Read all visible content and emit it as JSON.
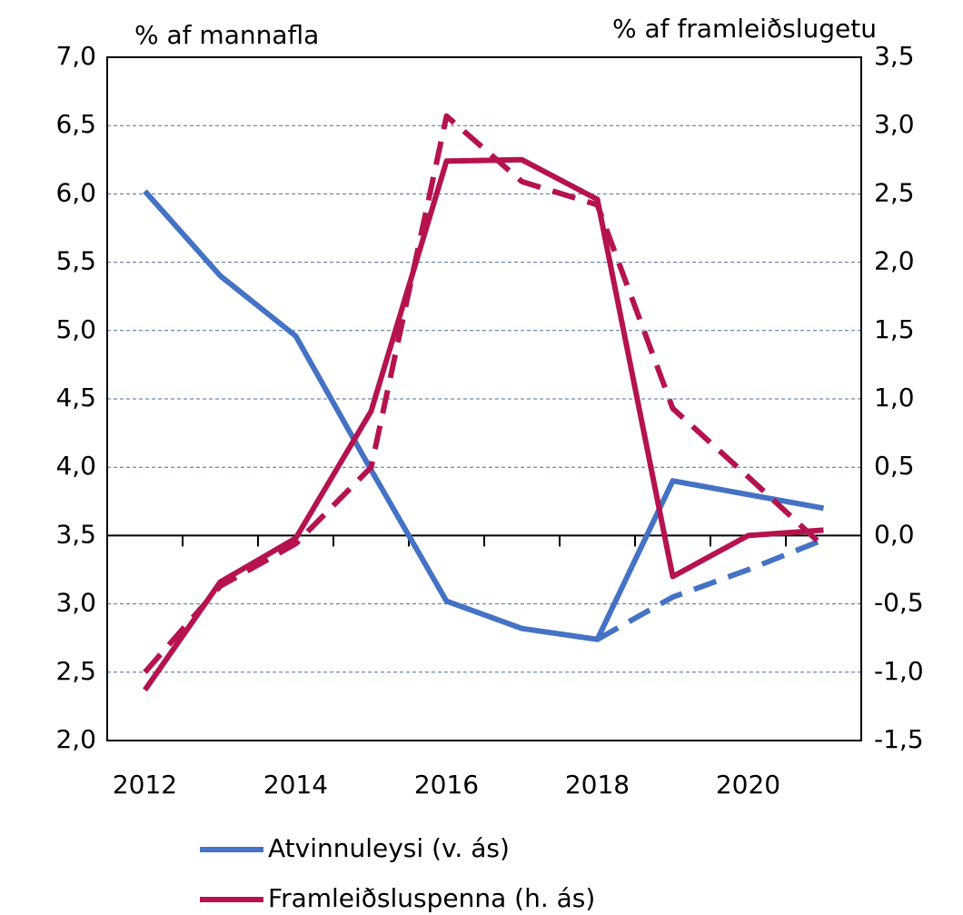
{
  "chart_data": {
    "type": "line",
    "y_axis_label": "% af mannafla",
    "y2_axis_label": "% af framleiðslugetu",
    "categories": [
      "2012",
      null,
      "2014",
      null,
      "2016",
      null,
      "2018",
      null,
      "2020",
      null
    ],
    "series": [
      {
        "name": "Atvinnuleysi (v. ás)",
        "color": "#4472c4",
        "axis": "y",
        "dashed": false,
        "values": [
          6.02,
          5.4,
          4.96,
          3.98,
          3.02,
          2.82,
          2.74,
          3.9,
          3.8,
          3.7
        ]
      },
      {
        "color": "#4472c4",
        "axis": "y",
        "dashed": true,
        "values": [
          null,
          null,
          null,
          null,
          null,
          null,
          2.74,
          3.05,
          3.25,
          3.47
        ]
      },
      {
        "name": "Framleiðsluspenna (h. ás)",
        "color": "#b5124f",
        "axis": "y2",
        "dashed": false,
        "values": [
          -1.13,
          -0.34,
          -0.02,
          0.91,
          2.74,
          2.75,
          2.46,
          -0.3,
          0.0,
          0.04
        ]
      },
      {
        "color": "#b5124f",
        "axis": "y2",
        "dashed": true,
        "values": [
          -1.0,
          -0.37,
          -0.06,
          0.5,
          3.07,
          2.59,
          2.42,
          0.93,
          0.43,
          -0.08
        ]
      }
    ],
    "ylim": [
      2.0,
      7.0
    ],
    "yticks": [
      {
        "value": 2.0,
        "label": "2,0"
      },
      {
        "value": 2.5,
        "label": "2,5"
      },
      {
        "value": 3.0,
        "label": "3,0"
      },
      {
        "value": 3.5,
        "label": "3,5"
      },
      {
        "value": 4.0,
        "label": "4,0"
      },
      {
        "value": 4.5,
        "label": "4,5"
      },
      {
        "value": 5.0,
        "label": "5,0"
      },
      {
        "value": 5.5,
        "label": "5,5"
      },
      {
        "value": 6.0,
        "label": "6,0"
      },
      {
        "value": 6.5,
        "label": "6,5"
      },
      {
        "value": 7.0,
        "label": "7,0"
      }
    ],
    "y2lim": [
      -1.5,
      3.5
    ],
    "y2ticks": [
      {
        "value": -1.5,
        "label": "-1,5"
      },
      {
        "value": -1.0,
        "label": "-1,0"
      },
      {
        "value": -0.5,
        "label": "-0,5"
      },
      {
        "value": 0.0,
        "label": "0,0"
      },
      {
        "value": 0.5,
        "label": "0,5"
      },
      {
        "value": 1.0,
        "label": "1,0"
      },
      {
        "value": 1.5,
        "label": "1,5"
      },
      {
        "value": 2.0,
        "label": "2,0"
      },
      {
        "value": 2.5,
        "label": "2,5"
      },
      {
        "value": 3.0,
        "label": "3,0"
      },
      {
        "value": 3.5,
        "label": "3,5"
      }
    ],
    "grid": true
  }
}
